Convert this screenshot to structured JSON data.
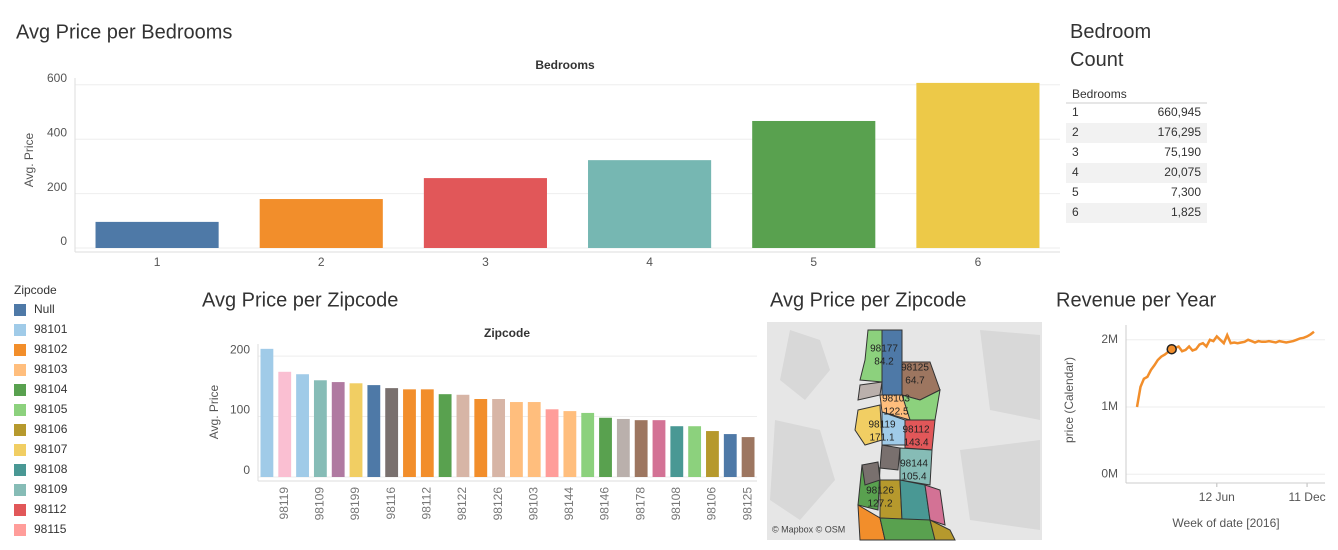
{
  "chart_data": [
    {
      "type": "bar",
      "title": "Avg Price per Bedrooms",
      "header": "Bedrooms",
      "y_label": "Avg. Price",
      "categories": [
        "1",
        "2",
        "3",
        "4",
        "5",
        "6"
      ],
      "values": [
        96,
        180,
        257,
        323,
        467,
        607
      ],
      "colors": [
        "#4e79a7",
        "#f28e2b",
        "#e15759",
        "#76b7b2",
        "#59a14f",
        "#edc948"
      ],
      "ylim": [
        0,
        625
      ],
      "yticks": [
        0,
        200,
        400,
        600
      ],
      "grid": true
    },
    {
      "type": "table",
      "title": "Bedroom Count",
      "columns": [
        "Bedrooms"
      ],
      "rows": [
        [
          "1",
          "660,945"
        ],
        [
          "2",
          "176,295"
        ],
        [
          "3",
          "75,190"
        ],
        [
          "4",
          "20,075"
        ],
        [
          "5",
          "7,300"
        ],
        [
          "6",
          "1,825"
        ]
      ]
    },
    {
      "type": "legend",
      "title": "Zipcode",
      "items": [
        {
          "name": "Null",
          "color": "#4e79a7"
        },
        {
          "name": "98101",
          "color": "#a0cbe8"
        },
        {
          "name": "98102",
          "color": "#f28e2b"
        },
        {
          "name": "98103",
          "color": "#ffbe7d"
        },
        {
          "name": "98104",
          "color": "#59a14f"
        },
        {
          "name": "98105",
          "color": "#8cd17d"
        },
        {
          "name": "98106",
          "color": "#b6992d"
        },
        {
          "name": "98107",
          "color": "#f1ce63"
        },
        {
          "name": "98108",
          "color": "#499894"
        },
        {
          "name": "98109",
          "color": "#86bcb6"
        },
        {
          "name": "98112",
          "color": "#e15759"
        },
        {
          "name": "98115",
          "color": "#ff9d9a"
        }
      ]
    },
    {
      "type": "bar",
      "title": "Avg Price per Zipcode",
      "header": "Zipcode",
      "y_label": "Avg. Price",
      "categories": [
        null,
        "98119",
        null,
        "98109",
        null,
        "98199",
        null,
        "98116",
        null,
        "98112",
        null,
        "98122",
        null,
        "98126",
        null,
        "98103",
        null,
        "98144",
        null,
        "98146",
        null,
        "98178",
        null,
        "98108",
        null,
        "98106",
        null,
        "98125"
      ],
      "values": [
        212,
        174,
        170,
        160,
        157,
        155,
        152,
        147,
        145,
        145,
        137,
        136,
        129,
        129,
        124,
        124,
        112,
        109,
        106,
        98,
        96,
        94,
        94,
        84,
        84,
        76,
        71,
        66
      ],
      "colors": [
        "#a0cbe8",
        "#fabfd2",
        "#a0cbe8",
        "#86bcb6",
        "#b07aa1",
        "#f1ce63",
        "#4e79a7",
        "#79706e",
        "#f28e2b",
        "#f28e2b",
        "#59a14f",
        "#d7b5a6",
        "#f28e2b",
        "#d7b5a6",
        "#ffbe7d",
        "#ffbe7d",
        "#ff9d9a",
        "#ffbe7d",
        "#8cd17d",
        "#59a14f",
        "#bab0ac",
        "#9d7660",
        "#d37295",
        "#499894",
        "#8cd17d",
        "#b6992d",
        "#4e79a7",
        "#9d7660"
      ],
      "ylim": [
        0,
        220
      ],
      "yticks": [
        0,
        100,
        200
      ],
      "grid": true
    },
    {
      "type": "map",
      "title": "Avg Price per Zipcode",
      "attribution": "© Mapbox © OSM",
      "regions": [
        {
          "name": "98177",
          "value": 84.2
        },
        {
          "name": "98125",
          "value": 64.7
        },
        {
          "name": "98103",
          "value": 122.5
        },
        {
          "name": "98119",
          "value": 171.1
        },
        {
          "name": "98112",
          "value": 143.4
        },
        {
          "name": "98144",
          "value": 105.4
        },
        {
          "name": "98126",
          "value": 127.2
        }
      ]
    },
    {
      "type": "line",
      "title": "Revenue per Year",
      "x_label": "Week of date [2016]",
      "y_label": "price (Calendar)",
      "x": [
        "2016-01-03",
        "2016-01-10",
        "2016-01-17",
        "2016-01-24",
        "2016-01-31",
        "2016-02-07",
        "2016-02-14",
        "2016-02-21",
        "2016-02-28",
        "2016-03-06",
        "2016-03-13",
        "2016-03-20",
        "2016-03-27",
        "2016-04-03",
        "2016-04-10",
        "2016-04-17",
        "2016-04-24",
        "2016-05-01",
        "2016-05-08",
        "2016-05-15",
        "2016-05-22",
        "2016-05-29",
        "2016-06-05",
        "2016-06-12",
        "2016-06-19",
        "2016-06-26",
        "2016-07-03",
        "2016-07-10",
        "2016-07-17",
        "2016-07-24",
        "2016-07-31",
        "2016-08-07",
        "2016-08-14",
        "2016-08-21",
        "2016-08-28",
        "2016-09-04",
        "2016-09-11",
        "2016-09-18",
        "2016-09-25",
        "2016-10-02",
        "2016-10-09",
        "2016-10-16",
        "2016-10-23",
        "2016-10-30",
        "2016-11-06",
        "2016-11-13",
        "2016-11-20",
        "2016-11-27",
        "2016-12-04",
        "2016-12-11",
        "2016-12-18",
        "2016-12-25"
      ],
      "values": [
        1000000,
        1300000,
        1420000,
        1450000,
        1550000,
        1620000,
        1700000,
        1750000,
        1780000,
        1820000,
        1860000,
        1880000,
        1900000,
        1830000,
        1850000,
        1900000,
        1840000,
        1860000,
        1930000,
        1950000,
        1900000,
        2000000,
        1980000,
        2050000,
        2000000,
        1950000,
        2070000,
        1950000,
        1960000,
        1950000,
        1960000,
        1970000,
        2000000,
        1980000,
        1960000,
        1980000,
        1970000,
        1970000,
        1980000,
        1970000,
        1960000,
        1980000,
        1970000,
        1960000,
        1970000,
        1980000,
        2000000,
        2020000,
        2030000,
        2050000,
        2080000,
        2120000
      ],
      "color": "#f28e2b",
      "highlighted_point": 10,
      "xlim": [
        "2016-01-03",
        "2016-12-25"
      ],
      "xticks": [
        {
          "value": "2016-06-12",
          "label": "12 Jun"
        },
        {
          "value": "2016-12-11",
          "label": "11 Dec"
        }
      ],
      "ylim": [
        -130000,
        2220000
      ],
      "yticks": [
        {
          "value": 0,
          "label": "0M"
        },
        {
          "value": 1000000,
          "label": "1M"
        },
        {
          "value": 2000000,
          "label": "2M"
        }
      ],
      "grid": true
    }
  ]
}
